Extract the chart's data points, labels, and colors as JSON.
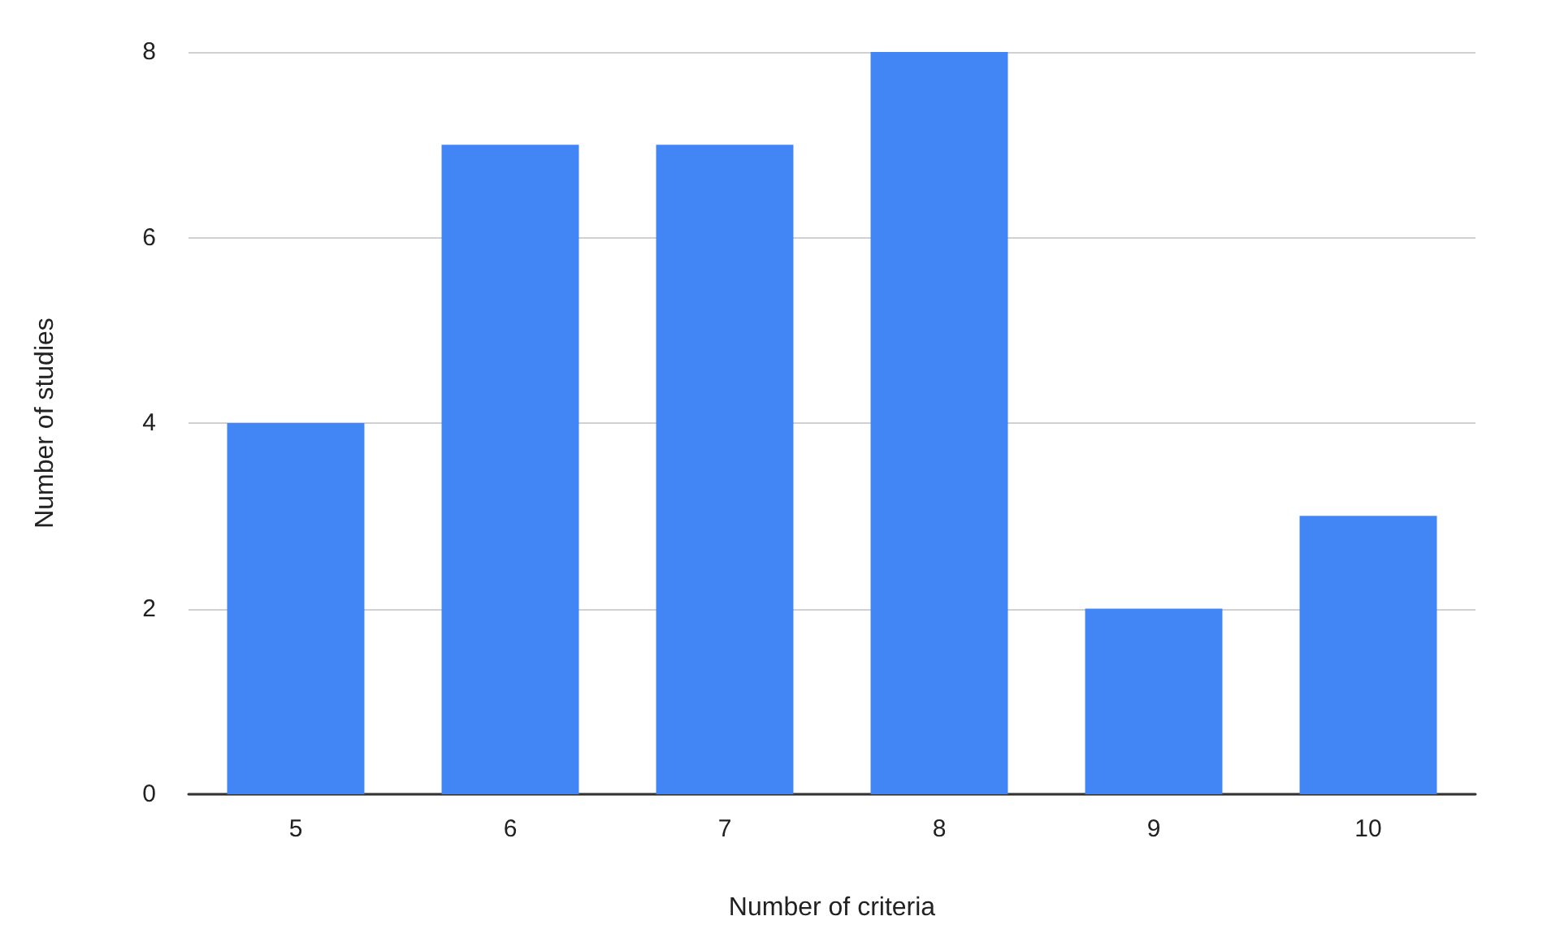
{
  "chart_data": {
    "type": "bar",
    "xlabel": "Number of criteria",
    "ylabel": "Number of studies",
    "categories": [
      "5",
      "6",
      "7",
      "8",
      "9",
      "10"
    ],
    "values": [
      4,
      7,
      7,
      8,
      2,
      3
    ],
    "color": "#4285f4",
    "ylim": [
      0,
      8
    ],
    "yticks": [
      0,
      2,
      4,
      6,
      8
    ],
    "grid": "y"
  }
}
